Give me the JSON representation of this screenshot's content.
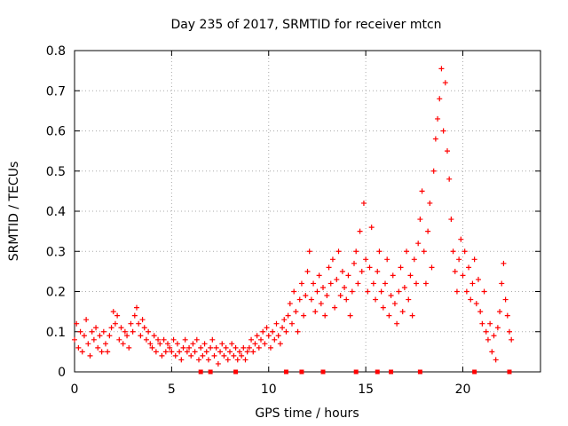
{
  "chart_data": {
    "type": "scatter",
    "title": "Day 235 of 2017, SRMTID for receiver mtcn",
    "xlabel": "GPS time / hours",
    "ylabel": "SRMTID / TECUs",
    "xlim": [
      0,
      24
    ],
    "ylim": [
      0,
      0.8
    ],
    "xticks": [
      0,
      5,
      10,
      15,
      20
    ],
    "yticks": [
      0,
      0.1,
      0.2,
      0.3,
      0.4,
      0.5,
      0.6,
      0.7,
      0.8
    ],
    "xtick_labels": [
      "0",
      "5",
      "10",
      "15",
      "20"
    ],
    "ytick_labels": [
      "0",
      "0.1",
      "0.2",
      "0.3",
      "0.4",
      "0.5",
      "0.6",
      "0.7",
      "0.8"
    ],
    "grid": true,
    "legend": "none",
    "marker": "+",
    "point_color": "#ff0000",
    "series": [
      {
        "name": "SRMTID",
        "points": [
          [
            0.0,
            0.08
          ],
          [
            0.1,
            0.12
          ],
          [
            0.2,
            0.06
          ],
          [
            0.3,
            0.1
          ],
          [
            0.4,
            0.05
          ],
          [
            0.5,
            0.09
          ],
          [
            0.6,
            0.13
          ],
          [
            0.7,
            0.07
          ],
          [
            0.8,
            0.04
          ],
          [
            0.9,
            0.1
          ],
          [
            1.0,
            0.08
          ],
          [
            1.1,
            0.11
          ],
          [
            1.2,
            0.06
          ],
          [
            1.3,
            0.09
          ],
          [
            1.4,
            0.05
          ],
          [
            1.5,
            0.1
          ],
          [
            1.6,
            0.07
          ],
          [
            1.7,
            0.05
          ],
          [
            1.8,
            0.09
          ],
          [
            1.9,
            0.11
          ],
          [
            2.0,
            0.15
          ],
          [
            2.1,
            0.12
          ],
          [
            2.2,
            0.14
          ],
          [
            2.3,
            0.08
          ],
          [
            2.4,
            0.11
          ],
          [
            2.5,
            0.07
          ],
          [
            2.6,
            0.1
          ],
          [
            2.7,
            0.09
          ],
          [
            2.8,
            0.06
          ],
          [
            2.9,
            0.12
          ],
          [
            3.0,
            0.1
          ],
          [
            3.1,
            0.14
          ],
          [
            3.2,
            0.16
          ],
          [
            3.3,
            0.12
          ],
          [
            3.4,
            0.09
          ],
          [
            3.5,
            0.13
          ],
          [
            3.6,
            0.11
          ],
          [
            3.7,
            0.08
          ],
          [
            3.8,
            0.1
          ],
          [
            3.9,
            0.07
          ],
          [
            4.0,
            0.06
          ],
          [
            4.1,
            0.09
          ],
          [
            4.2,
            0.05
          ],
          [
            4.3,
            0.08
          ],
          [
            4.4,
            0.07
          ],
          [
            4.5,
            0.04
          ],
          [
            4.6,
            0.08
          ],
          [
            4.7,
            0.05
          ],
          [
            4.8,
            0.07
          ],
          [
            4.9,
            0.06
          ],
          [
            5.0,
            0.05
          ],
          [
            5.1,
            0.08
          ],
          [
            5.2,
            0.04
          ],
          [
            5.3,
            0.07
          ],
          [
            5.4,
            0.05
          ],
          [
            5.5,
            0.03
          ],
          [
            5.6,
            0.06
          ],
          [
            5.7,
            0.08
          ],
          [
            5.8,
            0.05
          ],
          [
            5.9,
            0.06
          ],
          [
            6.0,
            0.04
          ],
          [
            6.1,
            0.07
          ],
          [
            6.2,
            0.05
          ],
          [
            6.3,
            0.08
          ],
          [
            6.4,
            0.03
          ],
          [
            6.5,
            0.06
          ],
          [
            6.6,
            0.04
          ],
          [
            6.7,
            0.07
          ],
          [
            6.8,
            0.05
          ],
          [
            6.9,
            0.03
          ],
          [
            7.0,
            0.06
          ],
          [
            7.1,
            0.08
          ],
          [
            7.2,
            0.04
          ],
          [
            7.3,
            0.06
          ],
          [
            7.4,
            0.02
          ],
          [
            7.5,
            0.05
          ],
          [
            7.6,
            0.07
          ],
          [
            7.7,
            0.04
          ],
          [
            7.8,
            0.06
          ],
          [
            7.9,
            0.03
          ],
          [
            8.0,
            0.05
          ],
          [
            8.1,
            0.07
          ],
          [
            8.2,
            0.04
          ],
          [
            8.3,
            0.06
          ],
          [
            8.4,
            0.03
          ],
          [
            8.5,
            0.05
          ],
          [
            8.6,
            0.04
          ],
          [
            8.7,
            0.06
          ],
          [
            8.8,
            0.03
          ],
          [
            8.9,
            0.05
          ],
          [
            9.0,
            0.06
          ],
          [
            9.1,
            0.08
          ],
          [
            9.2,
            0.05
          ],
          [
            9.3,
            0.07
          ],
          [
            9.4,
            0.09
          ],
          [
            9.5,
            0.06
          ],
          [
            9.6,
            0.08
          ],
          [
            9.7,
            0.1
          ],
          [
            9.8,
            0.07
          ],
          [
            9.9,
            0.11
          ],
          [
            10.0,
            0.09
          ],
          [
            10.1,
            0.06
          ],
          [
            10.2,
            0.1
          ],
          [
            10.3,
            0.08
          ],
          [
            10.4,
            0.12
          ],
          [
            10.5,
            0.09
          ],
          [
            10.6,
            0.07
          ],
          [
            10.7,
            0.11
          ],
          [
            10.8,
            0.13
          ],
          [
            10.9,
            0.1
          ],
          [
            11.0,
            0.14
          ],
          [
            11.1,
            0.17
          ],
          [
            11.2,
            0.12
          ],
          [
            11.3,
            0.2
          ],
          [
            11.4,
            0.15
          ],
          [
            11.5,
            0.1
          ],
          [
            11.6,
            0.18
          ],
          [
            11.7,
            0.22
          ],
          [
            11.8,
            0.14
          ],
          [
            11.9,
            0.19
          ],
          [
            12.0,
            0.25
          ],
          [
            12.1,
            0.3
          ],
          [
            12.2,
            0.18
          ],
          [
            12.3,
            0.22
          ],
          [
            12.4,
            0.15
          ],
          [
            12.5,
            0.2
          ],
          [
            12.6,
            0.24
          ],
          [
            12.7,
            0.17
          ],
          [
            12.8,
            0.21
          ],
          [
            12.9,
            0.14
          ],
          [
            13.0,
            0.19
          ],
          [
            13.1,
            0.26
          ],
          [
            13.2,
            0.22
          ],
          [
            13.3,
            0.28
          ],
          [
            13.4,
            0.16
          ],
          [
            13.5,
            0.23
          ],
          [
            13.6,
            0.3
          ],
          [
            13.7,
            0.19
          ],
          [
            13.8,
            0.25
          ],
          [
            13.9,
            0.21
          ],
          [
            14.0,
            0.18
          ],
          [
            14.1,
            0.24
          ],
          [
            14.2,
            0.14
          ],
          [
            14.3,
            0.2
          ],
          [
            14.4,
            0.27
          ],
          [
            14.5,
            0.3
          ],
          [
            14.6,
            0.22
          ],
          [
            14.7,
            0.35
          ],
          [
            14.8,
            0.25
          ],
          [
            14.9,
            0.42
          ],
          [
            15.0,
            0.28
          ],
          [
            15.1,
            0.2
          ],
          [
            15.2,
            0.26
          ],
          [
            15.3,
            0.36
          ],
          [
            15.4,
            0.22
          ],
          [
            15.5,
            0.18
          ],
          [
            15.6,
            0.25
          ],
          [
            15.7,
            0.3
          ],
          [
            15.8,
            0.2
          ],
          [
            15.9,
            0.16
          ],
          [
            16.0,
            0.22
          ],
          [
            16.1,
            0.28
          ],
          [
            16.2,
            0.14
          ],
          [
            16.3,
            0.19
          ],
          [
            16.4,
            0.24
          ],
          [
            16.5,
            0.17
          ],
          [
            16.6,
            0.12
          ],
          [
            16.7,
            0.2
          ],
          [
            16.8,
            0.26
          ],
          [
            16.9,
            0.15
          ],
          [
            17.0,
            0.21
          ],
          [
            17.1,
            0.3
          ],
          [
            17.2,
            0.18
          ],
          [
            17.3,
            0.24
          ],
          [
            17.4,
            0.14
          ],
          [
            17.5,
            0.28
          ],
          [
            17.6,
            0.22
          ],
          [
            17.7,
            0.32
          ],
          [
            17.8,
            0.38
          ],
          [
            17.9,
            0.45
          ],
          [
            18.0,
            0.3
          ],
          [
            18.1,
            0.22
          ],
          [
            18.2,
            0.35
          ],
          [
            18.3,
            0.42
          ],
          [
            18.4,
            0.26
          ],
          [
            18.5,
            0.5
          ],
          [
            18.6,
            0.58
          ],
          [
            18.7,
            0.63
          ],
          [
            18.8,
            0.68
          ],
          [
            18.9,
            0.755
          ],
          [
            19.0,
            0.6
          ],
          [
            19.1,
            0.72
          ],
          [
            19.2,
            0.55
          ],
          [
            19.3,
            0.48
          ],
          [
            19.4,
            0.38
          ],
          [
            19.5,
            0.3
          ],
          [
            19.6,
            0.25
          ],
          [
            19.7,
            0.2
          ],
          [
            19.8,
            0.28
          ],
          [
            19.9,
            0.33
          ],
          [
            20.0,
            0.24
          ],
          [
            20.1,
            0.3
          ],
          [
            20.2,
            0.2
          ],
          [
            20.3,
            0.26
          ],
          [
            20.4,
            0.18
          ],
          [
            20.5,
            0.22
          ],
          [
            20.6,
            0.28
          ],
          [
            20.7,
            0.17
          ],
          [
            20.8,
            0.23
          ],
          [
            20.9,
            0.15
          ],
          [
            21.0,
            0.12
          ],
          [
            21.1,
            0.2
          ],
          [
            21.2,
            0.1
          ],
          [
            21.3,
            0.08
          ],
          [
            21.4,
            0.12
          ],
          [
            21.5,
            0.05
          ],
          [
            21.6,
            0.09
          ],
          [
            21.7,
            0.03
          ],
          [
            21.8,
            0.11
          ],
          [
            21.9,
            0.15
          ],
          [
            22.0,
            0.22
          ],
          [
            22.1,
            0.27
          ],
          [
            22.2,
            0.18
          ],
          [
            22.3,
            0.14
          ],
          [
            22.4,
            0.1
          ],
          [
            22.5,
            0.08
          ]
        ]
      }
    ],
    "axis_markers": {
      "description": "square markers along the x-axis",
      "x": [
        6.5,
        7.0,
        8.3,
        10.9,
        11.7,
        12.8,
        14.5,
        15.6,
        16.3,
        17.8,
        20.6,
        22.4
      ]
    }
  }
}
